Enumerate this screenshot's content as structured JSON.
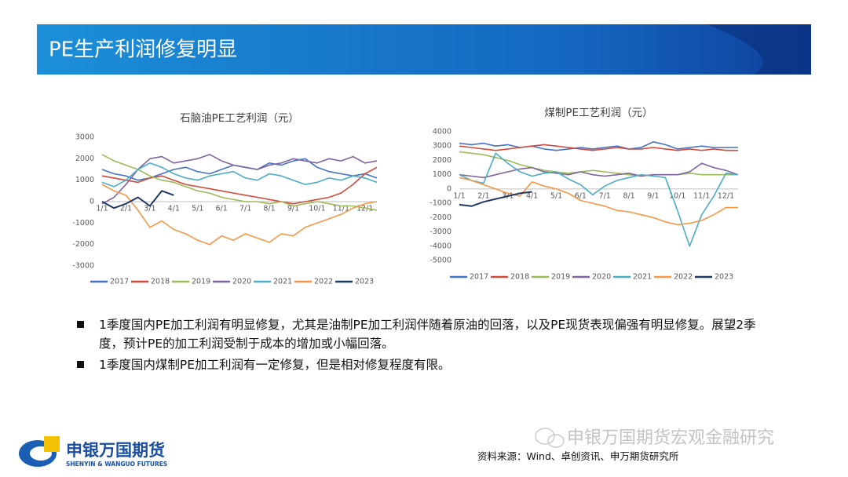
{
  "header": {
    "title": "PE生产利润修复明显"
  },
  "chart_data": [
    {
      "type": "line",
      "title": "石脑油PE工艺利润（元）",
      "categories": [
        "1/1",
        null,
        "2/1",
        null,
        "3/1",
        null,
        "4/1",
        null,
        "5/1",
        null,
        "6/1",
        null,
        "7/1",
        null,
        "8/1",
        null,
        "9/1",
        null,
        "10/1",
        null,
        "11/1",
        null,
        "12/1",
        null
      ],
      "ylim": [
        -3000,
        3000
      ],
      "yticks": [
        -3000,
        -2000,
        -1000,
        0,
        1000,
        2000,
        3000
      ],
      "legend": "bottom",
      "series": [
        {
          "name": "2017",
          "color": "#4472c4",
          "values": [
            1500,
            1300,
            1200,
            1000,
            1100,
            1300,
            1500,
            1600,
            1400,
            1300,
            1500,
            1700,
            1600,
            1500,
            1800,
            1700,
            1900,
            2000,
            1600,
            1400,
            1300,
            1200,
            1300,
            1100
          ]
        },
        {
          "name": "2018",
          "color": "#d04a3c",
          "values": [
            1200,
            1100,
            1000,
            900,
            1100,
            1200,
            1000,
            800,
            700,
            600,
            500,
            400,
            300,
            200,
            100,
            0,
            -100,
            0,
            100,
            200,
            400,
            800,
            1300,
            1600
          ]
        },
        {
          "name": "2019",
          "color": "#9bbb59",
          "values": [
            2200,
            1900,
            1700,
            1500,
            1200,
            1000,
            900,
            700,
            500,
            400,
            200,
            100,
            0,
            0,
            -100,
            0,
            -200,
            -100,
            0,
            -100,
            -200,
            -200,
            -300,
            -400
          ]
        },
        {
          "name": "2020",
          "color": "#8064a2",
          "values": [
            -100,
            200,
            800,
            1500,
            2000,
            2100,
            1800,
            1900,
            2000,
            2200,
            1900,
            1700,
            1600,
            1500,
            1700,
            1800,
            2000,
            1900,
            1800,
            2000,
            1900,
            2100,
            1800,
            1900
          ]
        },
        {
          "name": "2021",
          "color": "#4bacc6",
          "values": [
            900,
            700,
            1000,
            1500,
            1800,
            1600,
            1300,
            1100,
            1000,
            1200,
            1300,
            1400,
            1100,
            1000,
            1300,
            1200,
            1000,
            800,
            900,
            1100,
            1000,
            1200,
            1100,
            900
          ]
        },
        {
          "name": "2022",
          "color": "#f79646",
          "values": [
            800,
            500,
            300,
            -400,
            -1200,
            -900,
            -1300,
            -1500,
            -1800,
            -2000,
            -1600,
            -1800,
            -1500,
            -1700,
            -1900,
            -1500,
            -1600,
            -1200,
            -1000,
            -800,
            -600,
            -300,
            -100,
            0
          ]
        },
        {
          "name": "2023",
          "color": "#1f3864",
          "values": [
            0,
            -300,
            -100,
            200,
            -200,
            500,
            300,
            null,
            null,
            null,
            null,
            null,
            null,
            null,
            null,
            null,
            null,
            null,
            null,
            null,
            null,
            null,
            null,
            null
          ]
        }
      ]
    },
    {
      "type": "line",
      "title": "煤制PE工艺利润（元）",
      "categories": [
        "1/1",
        null,
        "2/1",
        null,
        "3/1",
        null,
        "4/1",
        null,
        "5/1",
        null,
        "6/1",
        null,
        "7/1",
        null,
        "8/1",
        null,
        "9/1",
        null,
        "10/1",
        null,
        "11/1",
        null,
        "12/1",
        null
      ],
      "ylim": [
        -5000,
        4000
      ],
      "yticks": [
        -5000,
        -4000,
        -3000,
        -2000,
        -1000,
        0,
        1000,
        2000,
        3000,
        4000
      ],
      "legend": "bottom",
      "series": [
        {
          "name": "2017",
          "color": "#4472c4",
          "values": [
            3200,
            3100,
            3200,
            3000,
            3100,
            2900,
            3000,
            2800,
            2700,
            2800,
            2900,
            2800,
            2900,
            3000,
            2800,
            2900,
            3300,
            3100,
            2800,
            2900,
            3000,
            2900,
            2900,
            2900
          ]
        },
        {
          "name": "2018",
          "color": "#d04a3c",
          "values": [
            3000,
            2900,
            2800,
            2700,
            2800,
            2900,
            3000,
            3100,
            3000,
            2900,
            2800,
            2700,
            2800,
            2900,
            2800,
            2800,
            2900,
            2800,
            2700,
            2800,
            2700,
            2800,
            2700,
            2700
          ]
        },
        {
          "name": "2019",
          "color": "#9bbb59",
          "values": [
            2600,
            2500,
            2400,
            2200,
            2000,
            1700,
            1500,
            1300,
            1200,
            1100,
            1200,
            1300,
            1200,
            1100,
            1000,
            900,
            1000,
            1000,
            1000,
            1100,
            1000,
            1000,
            1000,
            1000
          ]
        },
        {
          "name": "2020",
          "color": "#8064a2",
          "values": [
            1000,
            900,
            800,
            1000,
            1200,
            1400,
            1500,
            1200,
            1100,
            1000,
            1200,
            1000,
            900,
            1000,
            1100,
            900,
            1000,
            1000,
            1000,
            1200,
            1800,
            1500,
            1300,
            1000
          ]
        },
        {
          "name": "2021",
          "color": "#4bacc6",
          "values": [
            1000,
            600,
            400,
            2500,
            1800,
            1200,
            900,
            1100,
            1200,
            700,
            300,
            -400,
            200,
            600,
            800,
            1000,
            900,
            800,
            -1500,
            -4000,
            -1800,
            -500,
            1100,
            1000
          ]
        },
        {
          "name": "2022",
          "color": "#f79646",
          "values": [
            800,
            600,
            300,
            0,
            -300,
            -500,
            500,
            200,
            0,
            -300,
            -800,
            -1000,
            -1200,
            -1500,
            -1600,
            -1800,
            -2000,
            -2300,
            -2500,
            -2400,
            -2200,
            -1800,
            -1300,
            -1300
          ]
        },
        {
          "name": "2023",
          "color": "#1f3864",
          "values": [
            -1100,
            -1200,
            -900,
            -700,
            -500,
            -300,
            -200,
            null,
            null,
            null,
            null,
            null,
            null,
            null,
            null,
            null,
            null,
            null,
            null,
            null,
            null,
            null,
            null,
            null
          ]
        }
      ]
    }
  ],
  "bullets": [
    "1季度国内PE加工利润有明显修复，尤其是油制PE加工利润伴随着原油的回落，以及PE现货表现偏强有明显修复。展望2季度，预计PE的加工利润受制于成本的增加或小幅回落。",
    "1季度国内煤制PE加工利润有一定修复，但是相对修复程度有限。"
  ],
  "footer": {
    "logo_name": "申银万国期货",
    "logo_english": "SHENYIN & WANGUO FUTURES",
    "watermark": "申银万国期货宏观金融研究",
    "source": "资料来源：Wind、卓创资讯、申万期货研究所"
  }
}
